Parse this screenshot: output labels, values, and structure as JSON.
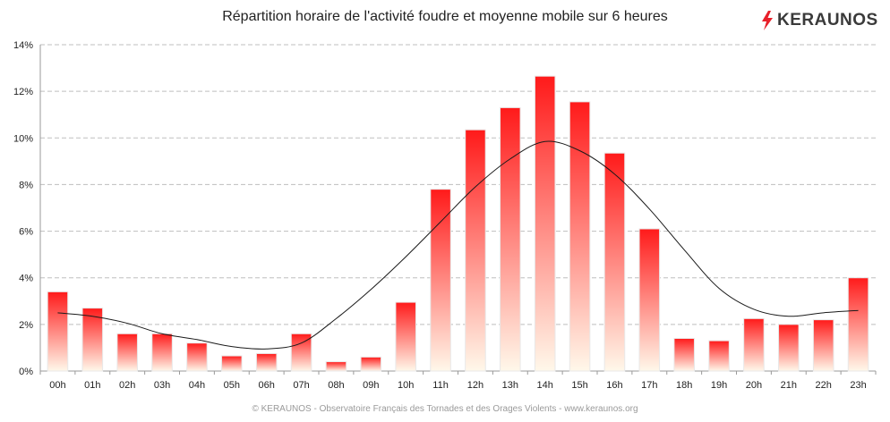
{
  "header": {
    "title": "Répartition horaire de l'activité foudre et moyenne mobile sur 6 heures",
    "logo_text": "KERAUNOS",
    "logo_icon": "lightning-bolt-icon"
  },
  "footer": {
    "text": "© KERAUNOS - Observatoire Français des Tornades et des Orages Violents - www.keraunos.org"
  },
  "colors": {
    "bar_top": "#ff1a1a",
    "bar_bottom": "#fff8ea",
    "bar_edge": "#e8e8e8",
    "line": "#1a1a1a",
    "grid": "#bfbfbf",
    "logo_bolt": "#e8202a"
  },
  "chart_data": {
    "type": "bar",
    "title": "Répartition horaire de l'activité foudre et moyenne mobile sur 6 heures",
    "xlabel": "",
    "ylabel": "",
    "categories": [
      "00h",
      "01h",
      "02h",
      "03h",
      "04h",
      "05h",
      "06h",
      "07h",
      "08h",
      "09h",
      "10h",
      "11h",
      "12h",
      "13h",
      "14h",
      "15h",
      "16h",
      "17h",
      "18h",
      "19h",
      "20h",
      "21h",
      "22h",
      "23h"
    ],
    "ylim": [
      0,
      14
    ],
    "yticks": [
      0,
      2,
      4,
      6,
      8,
      10,
      12,
      14
    ],
    "ytick_labels": [
      "0%",
      "2%",
      "4%",
      "6%",
      "8%",
      "10%",
      "12%",
      "14%"
    ],
    "grid": true,
    "legend": "none",
    "series": [
      {
        "type": "bar",
        "values": [
          3.4,
          2.7,
          1.6,
          1.6,
          1.2,
          0.65,
          0.75,
          1.6,
          0.4,
          0.6,
          2.95,
          7.8,
          10.35,
          11.3,
          12.65,
          11.55,
          9.35,
          6.1,
          1.4,
          1.3,
          2.25,
          2.0,
          2.2,
          4.0
        ]
      },
      {
        "type": "line",
        "values": [
          2.5,
          2.35,
          2.05,
          1.6,
          1.35,
          1.05,
          0.95,
          1.2,
          2.25,
          3.5,
          4.9,
          6.4,
          7.9,
          9.1,
          9.85,
          9.45,
          8.45,
          6.95,
          5.2,
          3.55,
          2.65,
          2.35,
          2.5,
          2.6
        ]
      }
    ]
  }
}
